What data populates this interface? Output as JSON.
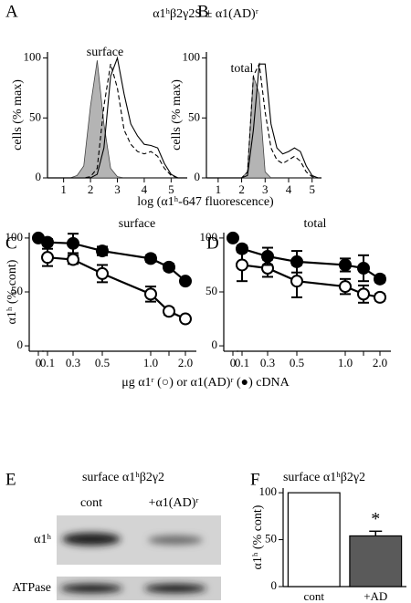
{
  "title": "α1ʰβ2γ2S ± α1(AD)ʳ",
  "chart_data": [
    {
      "panel": "A",
      "type": "line",
      "title": "surface",
      "xlabel": "log (α1ʰ-647 fluorescence)",
      "ylabel": "cells (% max)",
      "x": [
        1,
        1.25,
        1.5,
        1.75,
        2,
        2.25,
        2.5,
        2.75,
        3,
        3.25,
        3.5,
        3.75,
        4,
        4.25,
        4.5,
        4.75,
        5,
        5.25
      ],
      "xlim": [
        0.4,
        5.6
      ],
      "xticks": [
        1,
        2,
        3,
        4,
        5
      ],
      "ylim": [
        0,
        105
      ],
      "yticks": [
        0,
        50,
        100
      ],
      "series": [
        {
          "color": "#b4b4b4",
          "fill": true,
          "dash": false,
          "values": [
            0,
            0,
            2,
            10,
            60,
            98,
            45,
            8,
            1,
            0,
            0,
            0,
            0,
            0,
            0,
            0,
            0,
            0
          ]
        },
        {
          "color": "#000000",
          "fill": false,
          "dash": false,
          "values": [
            0,
            0,
            0,
            0,
            0,
            3,
            25,
            85,
            100,
            70,
            45,
            35,
            28,
            27,
            25,
            12,
            3,
            0
          ]
        },
        {
          "color": "#000000",
          "fill": false,
          "dash": true,
          "values": [
            0,
            0,
            0,
            0,
            1,
            8,
            60,
            95,
            75,
            40,
            28,
            22,
            20,
            22,
            18,
            8,
            2,
            0
          ]
        }
      ]
    },
    {
      "panel": "B",
      "type": "line",
      "title": "total",
      "ylabel": "cells (% max)",
      "x": [
        1,
        1.25,
        1.5,
        1.75,
        2,
        2.25,
        2.5,
        2.75,
        3,
        3.25,
        3.5,
        3.75,
        4,
        4.25,
        4.5,
        4.75,
        5,
        5.25
      ],
      "xlim": [
        0.5,
        5.4
      ],
      "xticks": [
        1,
        2,
        3,
        4,
        5
      ],
      "ylim": [
        0,
        105
      ],
      "yticks": [
        0,
        50,
        100
      ],
      "series": [
        {
          "color": "#b4b4b4",
          "fill": true,
          "dash": false,
          "values": [
            0,
            0,
            0,
            0,
            0,
            5,
            85,
            70,
            5,
            0,
            0,
            0,
            0,
            0,
            0,
            0,
            0,
            0
          ]
        },
        {
          "color": "#000000",
          "fill": false,
          "dash": false,
          "values": [
            0,
            0,
            0,
            0,
            0,
            2,
            40,
            95,
            95,
            45,
            25,
            20,
            22,
            25,
            22,
            10,
            2,
            0
          ]
        },
        {
          "color": "#000000",
          "fill": false,
          "dash": true,
          "values": [
            0,
            0,
            0,
            0,
            0,
            5,
            85,
            95,
            55,
            25,
            15,
            12,
            15,
            18,
            14,
            5,
            1,
            0
          ]
        }
      ]
    },
    {
      "panel": "C",
      "type": "errorbar",
      "title": "surface",
      "ylabel": "α1ʰ (% cont)",
      "xlabel": "μg α1ʳ (○) or α1(AD)ʳ (●) cDNA",
      "categories": [
        "0",
        "0.1",
        "0.3",
        "0.5",
        "1.0",
        null,
        "2.0"
      ],
      "ylim": [
        -5,
        105
      ],
      "yticks": [
        0,
        50,
        100
      ],
      "series": [
        {
          "marker": "open",
          "line": true,
          "values": [
            null,
            82,
            80,
            67,
            48,
            32,
            25
          ],
          "errors": [
            null,
            8,
            4,
            8,
            7,
            3,
            2
          ]
        },
        {
          "marker": "filled",
          "line": true,
          "values": [
            null,
            96,
            95,
            88,
            81,
            73,
            60
          ],
          "errors": [
            null,
            3,
            9,
            4,
            3,
            3,
            2
          ]
        },
        {
          "marker": "filled",
          "line": false,
          "values": [
            100,
            null,
            null,
            null,
            null,
            null,
            null
          ],
          "errors": [
            0,
            null,
            null,
            null,
            null,
            null,
            null
          ]
        }
      ]
    },
    {
      "panel": "D",
      "type": "errorbar",
      "title": "total",
      "categories": [
        "0",
        "0.1",
        "0.3",
        "0.5",
        "1.0",
        null,
        "2.0"
      ],
      "ylim": [
        -5,
        105
      ],
      "yticks": [
        0,
        50,
        100
      ],
      "series": [
        {
          "marker": "open",
          "line": true,
          "values": [
            null,
            75,
            72,
            60,
            55,
            48,
            45
          ],
          "errors": [
            null,
            15,
            8,
            15,
            7,
            8,
            3
          ]
        },
        {
          "marker": "filled",
          "line": true,
          "values": [
            null,
            90,
            83,
            78,
            75,
            72,
            62
          ],
          "errors": [
            null,
            3,
            8,
            10,
            6,
            12,
            3
          ]
        },
        {
          "marker": "filled",
          "line": false,
          "values": [
            100,
            null,
            null,
            null,
            null,
            null,
            null
          ],
          "errors": [
            0,
            null,
            null,
            null,
            null,
            null,
            null
          ]
        }
      ]
    },
    {
      "panel": "F",
      "type": "bar",
      "title": "surface α1ʰβ2γ2",
      "ylabel": "α1ʰ (% cont)",
      "categories": [
        "cont",
        "+AD"
      ],
      "values": [
        100,
        54
      ],
      "errors": [
        null,
        5
      ],
      "significance": [
        null,
        "*"
      ],
      "colors": [
        "#ffffff",
        "#5a5a5a"
      ],
      "ylim": [
        0,
        105
      ],
      "yticks": [
        0,
        50,
        100
      ]
    }
  ],
  "blot": {
    "panel": "E",
    "title": "surface α1ʰβ2γ2",
    "lanes": [
      "cont",
      "+α1(AD)ʳ"
    ],
    "rows": [
      "α1ʰ",
      "ATPase"
    ]
  }
}
